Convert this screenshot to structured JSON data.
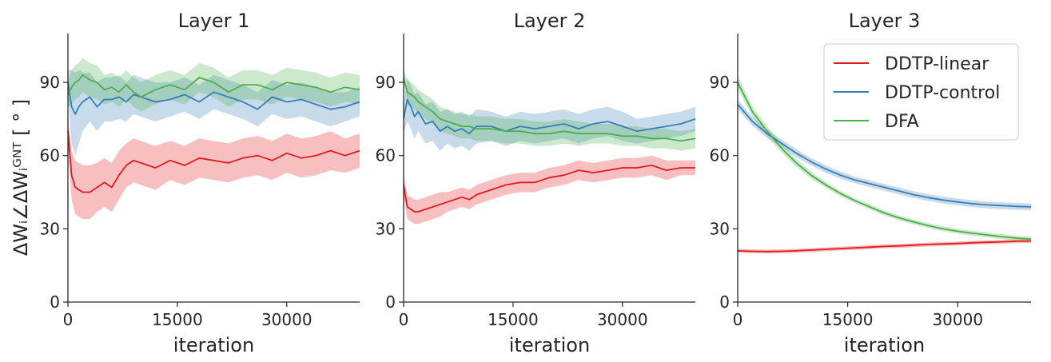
{
  "chart_data": {
    "type": "line",
    "ylabel": "ΔWᵢ∠ΔWᵢᴳᴺᵀ [ ° ]",
    "xlabel": "iteration",
    "xlim": [
      0,
      40000
    ],
    "ylim": [
      0,
      110
    ],
    "xticks": [
      0,
      15000,
      30000
    ],
    "yticks": [
      0,
      30,
      60,
      90
    ],
    "colors": {
      "DDTP-linear": "#e41a1c",
      "DDTP-control": "#377eb8",
      "DFA": "#4daf4a"
    },
    "legend": {
      "location": "upper-right, panel Layer 3",
      "entries": [
        "DDTP-linear",
        "DDTP-control",
        "DFA"
      ]
    },
    "panels": [
      {
        "title": "Layer 1",
        "series": [
          {
            "name": "DDTP-linear",
            "x": [
              0,
              500,
              1000,
              1500,
              2000,
              3000,
              4000,
              5000,
              6000,
              7000,
              8000,
              9000,
              10000,
              12000,
              14000,
              16000,
              18000,
              20000,
              22000,
              24000,
              26000,
              28000,
              30000,
              32000,
              34000,
              36000,
              38000,
              40000
            ],
            "y": [
              70,
              52,
              47,
              46,
              45,
              45,
              47,
              49,
              47,
              52,
              56,
              58,
              57,
              55,
              58,
              56,
              59,
              58,
              57,
              59,
              60,
              58,
              61,
              59,
              60,
              62,
              60,
              62
            ],
            "band": [
              6,
              10,
              11,
              11,
              11,
              11,
              10,
              10,
              10,
              10,
              9,
              9,
              9,
              9,
              8,
              8,
              8,
              8,
              8,
              8,
              8,
              8,
              8,
              8,
              8,
              8,
              7,
              7
            ]
          },
          {
            "name": "DDTP-control",
            "x": [
              0,
              500,
              1000,
              1500,
              2000,
              3000,
              4000,
              5000,
              6000,
              7000,
              8000,
              9000,
              10000,
              12000,
              14000,
              16000,
              18000,
              20000,
              22000,
              24000,
              26000,
              28000,
              30000,
              32000,
              34000,
              36000,
              38000,
              40000
            ],
            "y": [
              90,
              80,
              77,
              80,
              82,
              84,
              80,
              83,
              83,
              84,
              82,
              85,
              84,
              82,
              83,
              85,
              82,
              86,
              84,
              82,
              79,
              84,
              82,
              83,
              81,
              79,
              80,
              82
            ],
            "band": [
              5,
              15,
              17,
              15,
              12,
              10,
              10,
              9,
              9,
              9,
              8,
              8,
              8,
              8,
              7,
              7,
              7,
              7,
              7,
              7,
              7,
              7,
              7,
              7,
              7,
              7,
              6,
              6
            ]
          },
          {
            "name": "DFA",
            "x": [
              0,
              500,
              1000,
              1500,
              2000,
              3000,
              4000,
              5000,
              6000,
              7000,
              8000,
              9000,
              10000,
              12000,
              14000,
              16000,
              18000,
              20000,
              22000,
              24000,
              26000,
              28000,
              30000,
              32000,
              34000,
              36000,
              38000,
              40000
            ],
            "y": [
              85,
              88,
              90,
              91,
              93,
              91,
              90,
              87,
              88,
              86,
              89,
              86,
              84,
              87,
              89,
              87,
              92,
              90,
              86,
              89,
              89,
              87,
              90,
              89,
              88,
              86,
              88,
              87
            ],
            "band": [
              5,
              7,
              7,
              7,
              7,
              7,
              7,
              6,
              6,
              6,
              6,
              6,
              6,
              6,
              6,
              6,
              6,
              6,
              6,
              6,
              6,
              6,
              6,
              6,
              6,
              6,
              6,
              6
            ]
          }
        ]
      },
      {
        "title": "Layer 2",
        "series": [
          {
            "name": "DDTP-linear",
            "x": [
              0,
              500,
              1000,
              1500,
              2000,
              3000,
              4000,
              5000,
              6000,
              7000,
              8000,
              9000,
              10000,
              12000,
              14000,
              16000,
              18000,
              20000,
              22000,
              24000,
              26000,
              28000,
              30000,
              32000,
              34000,
              36000,
              38000,
              40000
            ],
            "y": [
              48,
              39,
              38,
              37,
              37,
              38,
              39,
              40,
              41,
              42,
              43,
              42,
              44,
              46,
              48,
              49,
              49,
              51,
              52,
              54,
              53,
              54,
              55,
              55,
              56,
              54,
              55,
              55
            ],
            "band": [
              4,
              5,
              5,
              5,
              5,
              5,
              5,
              5,
              4,
              4,
              4,
              4,
              4,
              4,
              4,
              4,
              4,
              4,
              4,
              4,
              4,
              4,
              4,
              4,
              4,
              4,
              3,
              3
            ]
          },
          {
            "name": "DDTP-control",
            "x": [
              0,
              500,
              1000,
              1500,
              2000,
              3000,
              4000,
              5000,
              6000,
              7000,
              8000,
              9000,
              10000,
              12000,
              14000,
              16000,
              18000,
              20000,
              22000,
              24000,
              26000,
              28000,
              30000,
              32000,
              34000,
              36000,
              38000,
              40000
            ],
            "y": [
              75,
              83,
              80,
              76,
              78,
              73,
              74,
              70,
              72,
              70,
              71,
              69,
              72,
              72,
              70,
              72,
              71,
              72,
              73,
              71,
              73,
              74,
              72,
              70,
              71,
              72,
              73,
              75
            ],
            "band": [
              6,
              9,
              9,
              9,
              8,
              8,
              8,
              8,
              7,
              7,
              7,
              7,
              7,
              6,
              6,
              6,
              6,
              6,
              6,
              6,
              6,
              6,
              6,
              5,
              5,
              5,
              5,
              5
            ]
          },
          {
            "name": "DFA",
            "x": [
              0,
              500,
              1000,
              1500,
              2000,
              3000,
              4000,
              5000,
              6000,
              7000,
              8000,
              9000,
              10000,
              12000,
              14000,
              16000,
              18000,
              20000,
              22000,
              24000,
              26000,
              28000,
              30000,
              32000,
              34000,
              36000,
              38000,
              40000
            ],
            "y": [
              92,
              86,
              85,
              84,
              82,
              80,
              78,
              75,
              74,
              73,
              72,
              72,
              71,
              71,
              70,
              70,
              69,
              69,
              70,
              69,
              69,
              69,
              68,
              68,
              67,
              67,
              66,
              67
            ],
            "band": [
              3,
              5,
              5,
              5,
              5,
              5,
              5,
              5,
              5,
              5,
              5,
              5,
              5,
              5,
              5,
              5,
              5,
              5,
              5,
              5,
              4,
              4,
              4,
              4,
              4,
              4,
              4,
              4
            ]
          }
        ]
      },
      {
        "title": "Layer 3",
        "series": [
          {
            "name": "DDTP-linear",
            "x": [
              0,
              2000,
              4000,
              6000,
              8000,
              10000,
              12000,
              14000,
              16000,
              18000,
              20000,
              22000,
              24000,
              26000,
              28000,
              30000,
              32000,
              34000,
              36000,
              38000,
              40000
            ],
            "y": [
              21,
              20.8,
              20.7,
              20.8,
              21,
              21.3,
              21.6,
              21.9,
              22.2,
              22.5,
              22.8,
              23,
              23.3,
              23.6,
              23.8,
              24,
              24.3,
              24.5,
              24.7,
              24.9,
              25
            ],
            "band": [
              0.8,
              0.8,
              0.8,
              0.8,
              0.8,
              0.8,
              0.8,
              0.8,
              0.8,
              0.8,
              0.8,
              0.8,
              0.8,
              0.8,
              0.8,
              0.8,
              0.8,
              0.8,
              0.8,
              0.8,
              0.8
            ]
          },
          {
            "name": "DDTP-control",
            "x": [
              0,
              2000,
              4000,
              6000,
              8000,
              10000,
              12000,
              14000,
              16000,
              18000,
              20000,
              22000,
              24000,
              26000,
              28000,
              30000,
              32000,
              34000,
              36000,
              38000,
              40000
            ],
            "y": [
              81,
              74,
              69,
              65,
              61,
              57.5,
              54.5,
              52,
              50,
              48.5,
              47,
              45.5,
              44,
              42.8,
              41.8,
              41,
              40.3,
              39.8,
              39.5,
              39.2,
              39
            ],
            "band": [
              2,
              1.8,
              1.8,
              1.6,
              1.6,
              1.5,
              1.5,
              1.5,
              1.4,
              1.4,
              1.4,
              1.4,
              1.4,
              1.4,
              1.4,
              1.4,
              1.4,
              1.4,
              1.4,
              1.4,
              1.4
            ]
          },
          {
            "name": "DFA",
            "x": [
              0,
              2000,
              4000,
              6000,
              8000,
              10000,
              12000,
              14000,
              16000,
              18000,
              20000,
              22000,
              24000,
              26000,
              28000,
              30000,
              32000,
              34000,
              36000,
              38000,
              40000
            ],
            "y": [
              90,
              78,
              70,
              63,
              57,
              52,
              48,
              44.5,
              41.5,
              39,
              36.5,
              34.5,
              32.8,
              31.3,
              30,
              29,
              28.2,
              27.5,
              26.8,
              26.2,
              25.8
            ],
            "band": [
              2.5,
              2.2,
              2,
              1.8,
              1.6,
              1.4,
              1.2,
              1.1,
              1,
              1,
              1,
              1,
              1,
              1,
              1,
              1,
              1,
              1,
              1,
              1,
              1
            ]
          }
        ]
      }
    ]
  }
}
